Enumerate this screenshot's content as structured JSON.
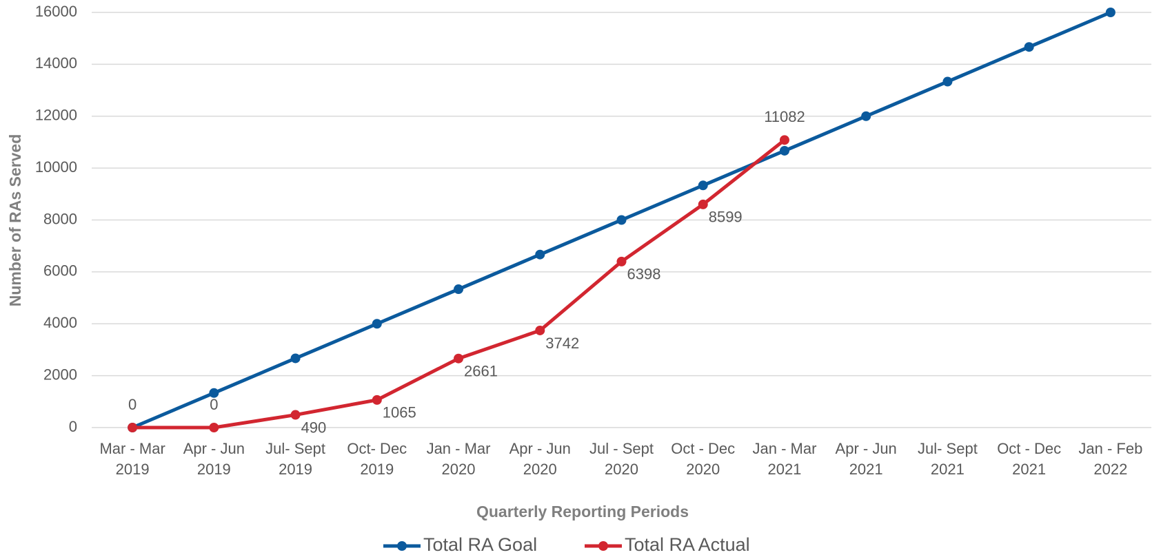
{
  "chart_data": {
    "type": "line",
    "x_label": "Quarterly Reporting Periods",
    "y_label": "Number of RAs Served",
    "categories": [
      "Mar - Mar 2019",
      "Apr - Jun 2019",
      "Jul- Sept 2019",
      "Oct- Dec 2019",
      "Jan - Mar 2020",
      "Apr - Jun 2020",
      "Jul - Sept 2020",
      "Oct - Dec 2020",
      "Jan - Mar 2021",
      "Apr - Jun 2021",
      "Jul- Sept 2021",
      "Oct - Dec 2021",
      "Jan - Feb 2022"
    ],
    "series": [
      {
        "name": "Total RA Goal",
        "color": "#0b5a9d",
        "values": [
          0,
          1333,
          2667,
          4000,
          5333,
          6667,
          8000,
          9333,
          10667,
          12000,
          13333,
          14667,
          16000
        ]
      },
      {
        "name": "Total RA Actual",
        "color": "#d22630",
        "values": [
          0,
          0,
          490,
          1065,
          2661,
          3742,
          6398,
          8599,
          11082,
          null,
          null,
          null,
          null
        ],
        "data_labels": true
      }
    ],
    "ylim": [
      0,
      16000
    ],
    "yticks": [
      0,
      2000,
      4000,
      6000,
      8000,
      10000,
      12000,
      14000,
      16000
    ],
    "grid": true,
    "legend": "bottom"
  }
}
